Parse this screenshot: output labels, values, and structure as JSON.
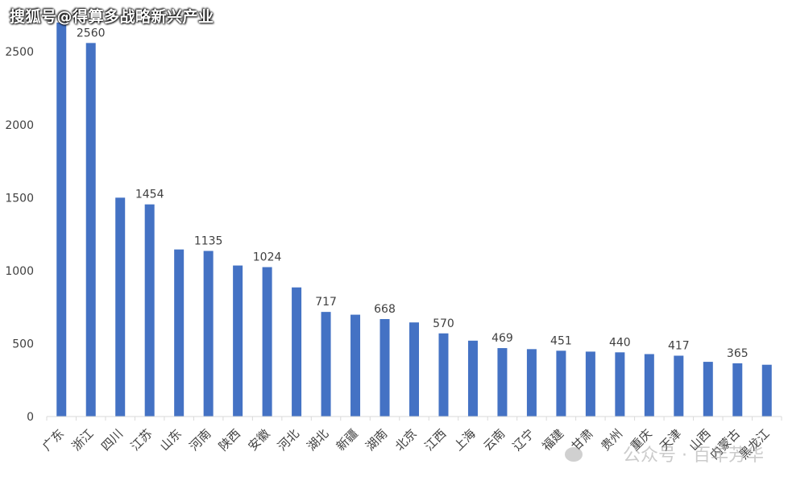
{
  "watermark": "搜狐号@得算多战略新兴产业",
  "watermark2": "公众号 · 百年芳华",
  "colors": {
    "bar": "#4472C4",
    "axis": "#595959",
    "grid": "#d9d9d9",
    "text": "#404040"
  },
  "chart_data": {
    "type": "bar",
    "title": "",
    "xlabel": "",
    "ylabel": "",
    "ylim": [
      0,
      2700
    ],
    "yticks": [
      0,
      500,
      1000,
      1500,
      2000,
      2500
    ],
    "grid": false,
    "categories": [
      "广东",
      "浙江",
      "四川",
      "江苏",
      "山东",
      "河南",
      "陕西",
      "安徽",
      "河北",
      "湖北",
      "新疆",
      "湖南",
      "北京",
      "江西",
      "上海",
      "云南",
      "辽宁",
      "福建",
      "甘肃",
      "贵州",
      "重庆",
      "天津",
      "山西",
      "内蒙古",
      "黑龙江"
    ],
    "values": [
      2900,
      2560,
      1500,
      1454,
      1145,
      1135,
      1035,
      1024,
      885,
      717,
      698,
      668,
      645,
      570,
      520,
      469,
      462,
      451,
      445,
      440,
      428,
      417,
      375,
      365,
      355
    ],
    "data_labels": [
      "",
      "2560",
      "",
      "1454",
      "",
      "1135",
      "",
      "1024",
      "",
      "717",
      "",
      "668",
      "",
      "570",
      "",
      "469",
      "",
      "451",
      "",
      "440",
      "",
      "417",
      "",
      "365",
      ""
    ]
  }
}
